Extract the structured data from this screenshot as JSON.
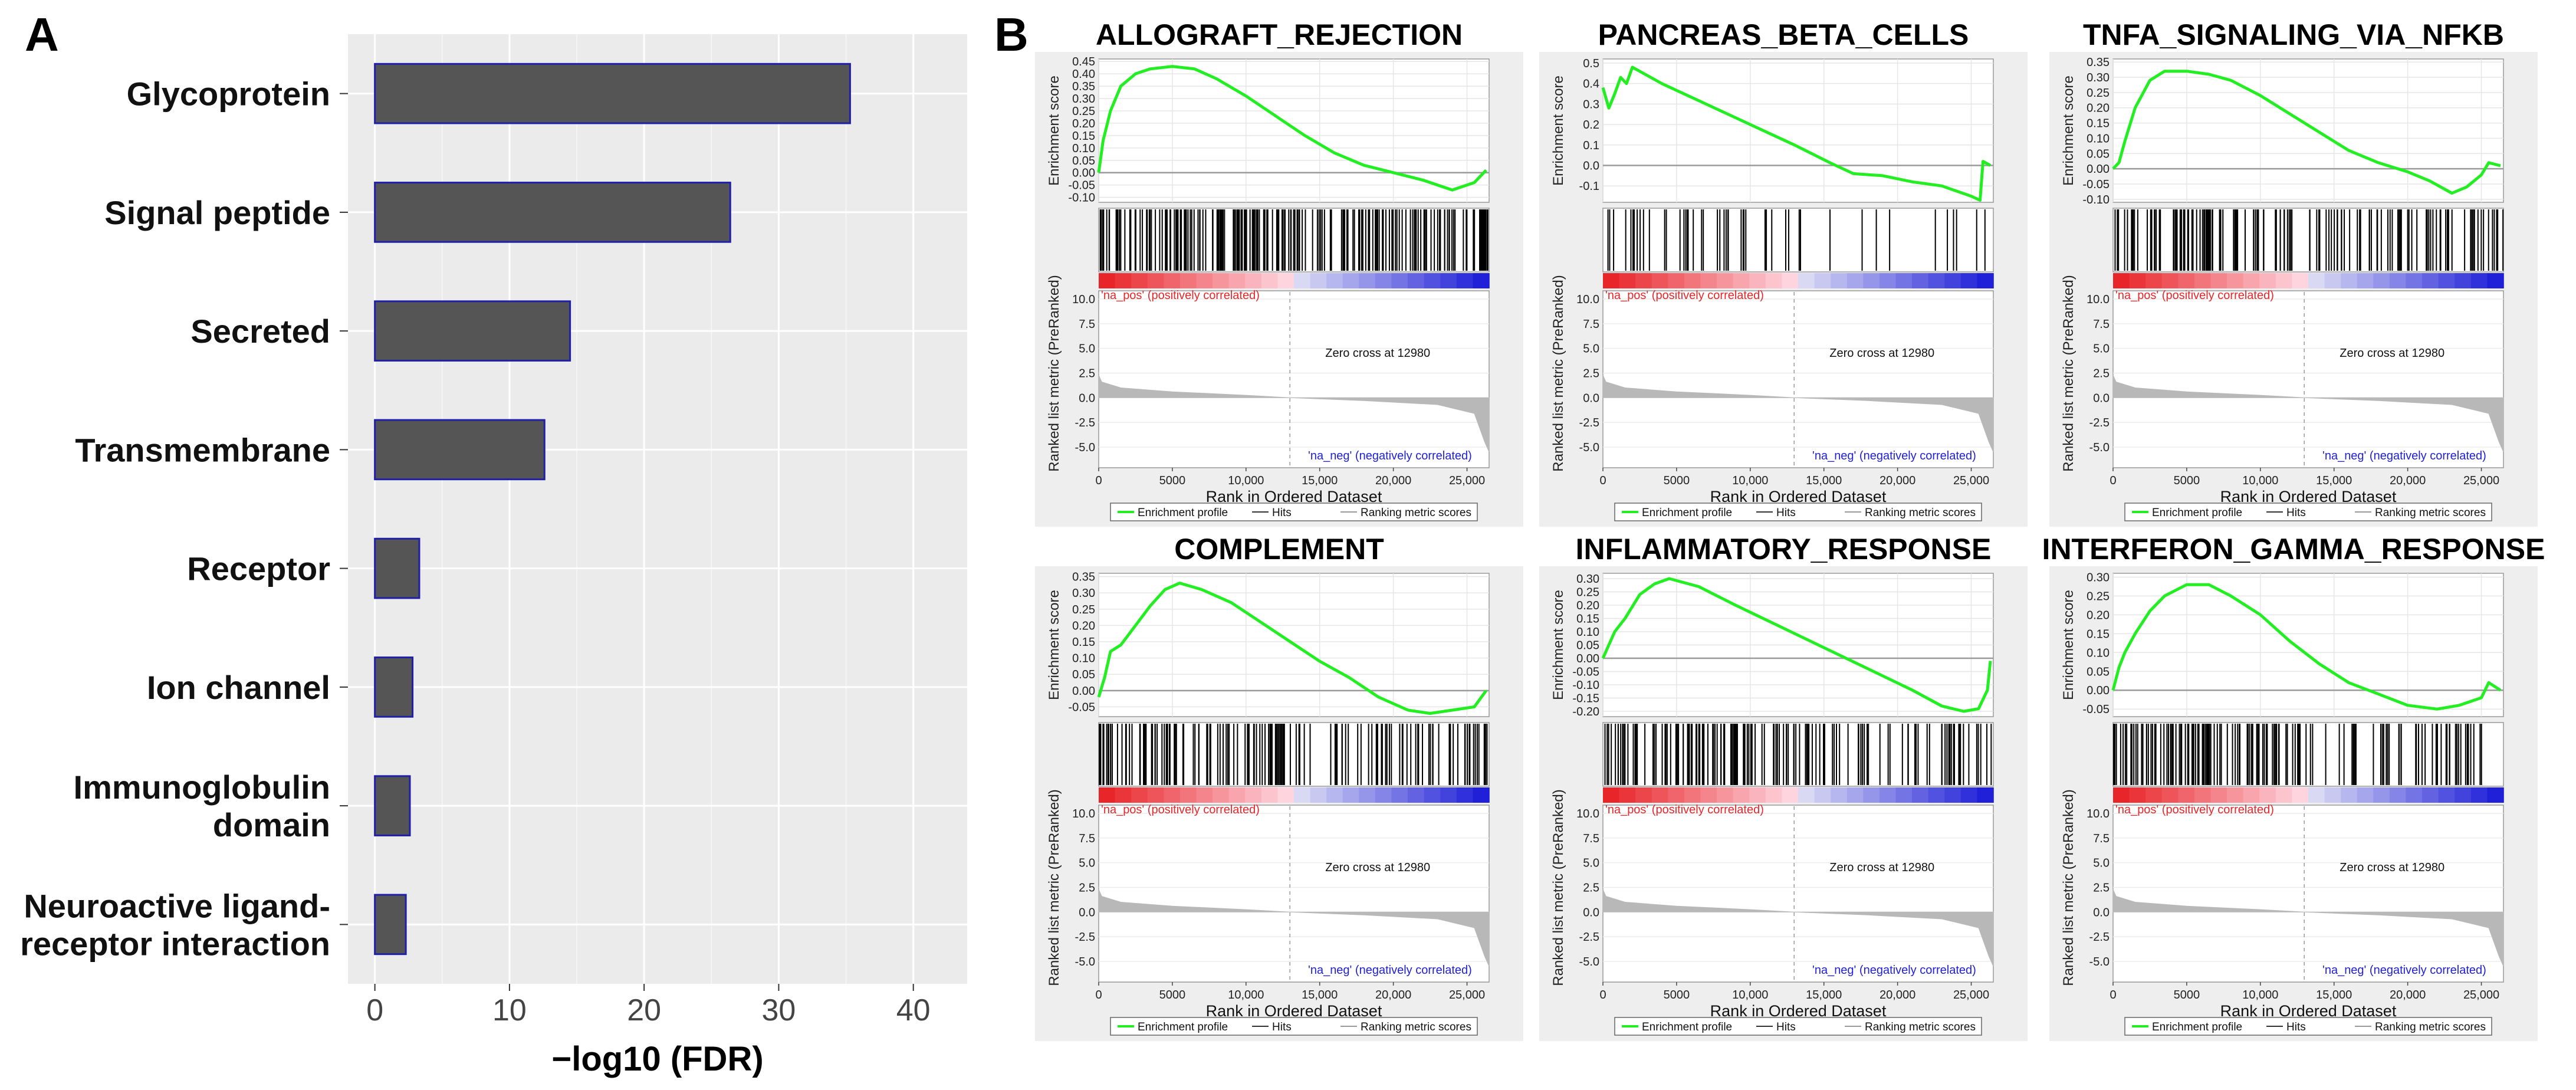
{
  "panel_labels": {
    "a": "A",
    "b": "B"
  },
  "chart_data": [
    {
      "type": "bar",
      "orientation": "horizontal",
      "categories": [
        "Glycoprotein",
        "Signal peptide",
        "Secreted",
        "Transmembrane",
        "Receptor",
        "Ion channel",
        "Immunoglobulin domain",
        "Neuroactive ligand-receptor interaction"
      ],
      "category_lines": [
        [
          "Glycoprotein"
        ],
        [
          "Signal peptide"
        ],
        [
          "Secreted"
        ],
        [
          "Transmembrane"
        ],
        [
          "Receptor"
        ],
        [
          "Ion channel"
        ],
        [
          "Immunoglobulin",
          "domain"
        ],
        [
          "Neuroactive ligand-",
          "receptor interaction"
        ]
      ],
      "values": [
        35.3,
        26.4,
        14.5,
        12.6,
        3.3,
        2.8,
        2.6,
        2.3
      ],
      "xlabel": "−log10 (FDR)",
      "xticks": [
        "0",
        "10",
        "20",
        "30",
        "40"
      ],
      "xlim": [
        -2,
        44
      ],
      "colors": {
        "bar": "#555555",
        "edge": "#1f1fa8",
        "background": "#ebebeb"
      }
    },
    {
      "type": "gsea_enrichment_panels",
      "common": {
        "es_ylabel": "Enrichment score",
        "rank_ylabel": "Ranked list metric (PreRanked)",
        "xlabel": "Rank in Ordered Dataset",
        "xticks": [
          "0",
          "5000",
          "10,000",
          "15,000",
          "20,000",
          "25,000"
        ],
        "xlim": [
          0,
          26500
        ],
        "metric_ticks": [
          "10.0",
          "7.5",
          "5.0",
          "2.5",
          "0.0",
          "-2.5",
          "-5.0"
        ],
        "pos_label": "'na_pos' (positively correlated)",
        "neg_label": "'na_neg' (negatively correlated)",
        "zero_cross_label": "Zero cross at 12980",
        "zero_cross": 12980,
        "legend": [
          "Enrichment profile",
          "Hits",
          "Ranking metric scores"
        ],
        "colors": {
          "profile": "#22ee22",
          "hits": "#000000",
          "metric": "#b8b8b8",
          "pos": "#e8262a",
          "neg": "#2020d8"
        }
      },
      "panels": [
        {
          "title": "ALLOGRAFT_REJECTION",
          "yticks": [
            "0.45",
            "0.40",
            "0.35",
            "0.30",
            "0.25",
            "0.20",
            "0.15",
            "0.10",
            "0.05",
            "0.00",
            "-0.05",
            "-0.10"
          ],
          "ylim": [
            -0.12,
            0.46
          ],
          "points": [
            [
              0,
              0.0
            ],
            [
              300,
              0.13
            ],
            [
              800,
              0.25
            ],
            [
              1500,
              0.35
            ],
            [
              2500,
              0.4
            ],
            [
              3500,
              0.42
            ],
            [
              5000,
              0.43
            ],
            [
              6500,
              0.42
            ],
            [
              8000,
              0.38
            ],
            [
              10000,
              0.31
            ],
            [
              12000,
              0.23
            ],
            [
              14000,
              0.15
            ],
            [
              16000,
              0.08
            ],
            [
              18000,
              0.03
            ],
            [
              20000,
              0.0
            ],
            [
              22000,
              -0.03
            ],
            [
              24000,
              -0.07
            ],
            [
              25500,
              -0.04
            ],
            [
              26300,
              0.01
            ]
          ],
          "hit_density": 0.95
        },
        {
          "title": "PANCREAS_BETA_CELLS",
          "yticks": [
            "0.5",
            "0.4",
            "0.3",
            "0.2",
            "0.1",
            "0.0",
            "-0.1"
          ],
          "ylim": [
            -0.18,
            0.52
          ],
          "points": [
            [
              0,
              0.38
            ],
            [
              400,
              0.28
            ],
            [
              800,
              0.35
            ],
            [
              1200,
              0.43
            ],
            [
              1600,
              0.4
            ],
            [
              2000,
              0.48
            ],
            [
              4000,
              0.4
            ],
            [
              7000,
              0.3
            ],
            [
              10000,
              0.2
            ],
            [
              13000,
              0.1
            ],
            [
              15500,
              0.01
            ],
            [
              17000,
              -0.04
            ],
            [
              19000,
              -0.05
            ],
            [
              21000,
              -0.08
            ],
            [
              23000,
              -0.1
            ],
            [
              25000,
              -0.15
            ],
            [
              25600,
              -0.17
            ],
            [
              25800,
              0.02
            ],
            [
              26300,
              0.0
            ]
          ],
          "hit_density": 0.3
        },
        {
          "title": "TNFA_SIGNALING_VIA_NFKB",
          "yticks": [
            "0.35",
            "0.30",
            "0.25",
            "0.20",
            "0.15",
            "0.10",
            "0.05",
            "0.00",
            "-0.05",
            "-0.10"
          ],
          "ylim": [
            -0.11,
            0.36
          ],
          "points": [
            [
              0,
              0.0
            ],
            [
              400,
              0.02
            ],
            [
              800,
              0.09
            ],
            [
              1500,
              0.2
            ],
            [
              2500,
              0.29
            ],
            [
              3500,
              0.32
            ],
            [
              5000,
              0.32
            ],
            [
              6500,
              0.31
            ],
            [
              8000,
              0.29
            ],
            [
              10000,
              0.24
            ],
            [
              12000,
              0.18
            ],
            [
              14000,
              0.12
            ],
            [
              16000,
              0.06
            ],
            [
              18000,
              0.02
            ],
            [
              20000,
              -0.01
            ],
            [
              21500,
              -0.04
            ],
            [
              23000,
              -0.08
            ],
            [
              24000,
              -0.06
            ],
            [
              25000,
              -0.02
            ],
            [
              25500,
              0.02
            ],
            [
              26300,
              0.01
            ]
          ],
          "hit_density": 0.75
        },
        {
          "title": "COMPLEMENT",
          "yticks": [
            "0.35",
            "0.30",
            "0.25",
            "0.20",
            "0.15",
            "0.10",
            "0.05",
            "0.00",
            "-0.05"
          ],
          "ylim": [
            -0.08,
            0.36
          ],
          "points": [
            [
              0,
              -0.02
            ],
            [
              400,
              0.04
            ],
            [
              800,
              0.12
            ],
            [
              1500,
              0.14
            ],
            [
              2500,
              0.2
            ],
            [
              3500,
              0.26
            ],
            [
              4500,
              0.31
            ],
            [
              5500,
              0.33
            ],
            [
              7000,
              0.31
            ],
            [
              9000,
              0.27
            ],
            [
              11000,
              0.21
            ],
            [
              13000,
              0.15
            ],
            [
              15000,
              0.09
            ],
            [
              17000,
              0.04
            ],
            [
              19000,
              -0.02
            ],
            [
              21000,
              -0.06
            ],
            [
              22500,
              -0.07
            ],
            [
              24000,
              -0.06
            ],
            [
              25500,
              -0.05
            ],
            [
              26300,
              0.0
            ]
          ],
          "hit_density": 0.75
        },
        {
          "title": "INFLAMMATORY_RESPONSE",
          "yticks": [
            "0.30",
            "0.25",
            "0.20",
            "0.15",
            "0.10",
            "0.05",
            "0.00",
            "-0.05",
            "-0.10",
            "-0.15",
            "-0.20"
          ],
          "ylim": [
            -0.22,
            0.32
          ],
          "points": [
            [
              0,
              0.0
            ],
            [
              400,
              0.05
            ],
            [
              800,
              0.1
            ],
            [
              1500,
              0.15
            ],
            [
              2500,
              0.24
            ],
            [
              3500,
              0.28
            ],
            [
              4500,
              0.3
            ],
            [
              6500,
              0.27
            ],
            [
              9000,
              0.2
            ],
            [
              12000,
              0.12
            ],
            [
              15000,
              0.04
            ],
            [
              18000,
              -0.04
            ],
            [
              21000,
              -0.12
            ],
            [
              23000,
              -0.18
            ],
            [
              24500,
              -0.2
            ],
            [
              25500,
              -0.19
            ],
            [
              26100,
              -0.12
            ],
            [
              26300,
              -0.01
            ]
          ],
          "hit_density": 0.75
        },
        {
          "title": "INTERFERON_GAMMA_RESPONSE",
          "yticks": [
            "0.30",
            "0.25",
            "0.20",
            "0.15",
            "0.10",
            "0.05",
            "0.00",
            "-0.05"
          ],
          "ylim": [
            -0.07,
            0.31
          ],
          "points": [
            [
              0,
              0.0
            ],
            [
              400,
              0.06
            ],
            [
              800,
              0.1
            ],
            [
              1500,
              0.15
            ],
            [
              2500,
              0.21
            ],
            [
              3500,
              0.25
            ],
            [
              5000,
              0.28
            ],
            [
              6500,
              0.28
            ],
            [
              8000,
              0.25
            ],
            [
              10000,
              0.2
            ],
            [
              12000,
              0.13
            ],
            [
              14000,
              0.07
            ],
            [
              16000,
              0.02
            ],
            [
              18000,
              -0.01
            ],
            [
              20000,
              -0.04
            ],
            [
              22000,
              -0.05
            ],
            [
              23500,
              -0.04
            ],
            [
              25000,
              -0.02
            ],
            [
              25500,
              0.02
            ],
            [
              26300,
              0.0
            ]
          ],
          "hit_density": 0.75
        }
      ]
    }
  ]
}
